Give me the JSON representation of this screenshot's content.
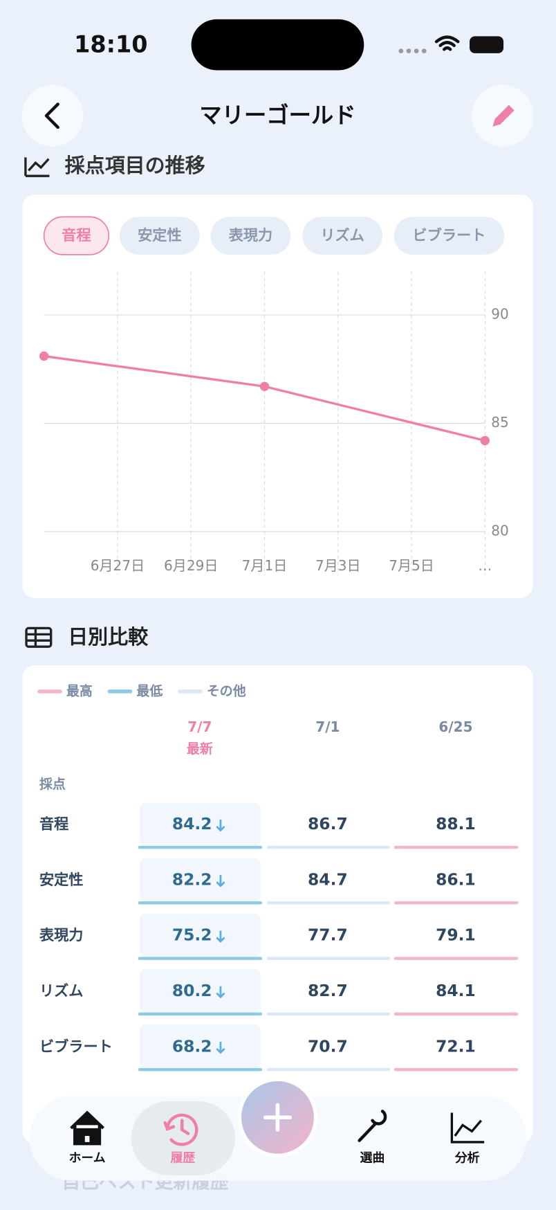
{
  "status_bar": {
    "time": "18:10"
  },
  "header": {
    "title": "マリーゴールド"
  },
  "trend": {
    "title": "採点項目の推移",
    "tabs": [
      "音程",
      "安定性",
      "表現力",
      "リズム",
      "ビブラート"
    ]
  },
  "chart_data": {
    "type": "line",
    "x": [
      176,
      182,
      188
    ],
    "xlim": [
      176,
      188
    ],
    "xticks": [
      {
        "value": 178,
        "label": "6月27日"
      },
      {
        "value": 180,
        "label": "6月29日"
      },
      {
        "value": 182,
        "label": "7月1日"
      },
      {
        "value": 184,
        "label": "7月3日"
      },
      {
        "value": 186,
        "label": "7月5日"
      },
      {
        "value": 188,
        "label": "…"
      }
    ],
    "series": [
      {
        "name": "音程",
        "color": "#f07fa8",
        "values": [
          88.1,
          86.7,
          84.2
        ]
      }
    ],
    "ylim": [
      78,
      92
    ],
    "yticks": [
      80,
      85,
      90
    ],
    "grid": true
  },
  "comparison": {
    "title": "日別比較",
    "legend": [
      "最高",
      "最低",
      "その他"
    ],
    "columns": [
      "7/7",
      "7/1",
      "6/25"
    ],
    "latest_label": "最新",
    "group": "採点",
    "rows": [
      {
        "label": "音程",
        "values": [
          84.2,
          86.7,
          88.1
        ]
      },
      {
        "label": "安定性",
        "values": [
          82.2,
          84.7,
          86.1
        ]
      },
      {
        "label": "表現力",
        "values": [
          75.2,
          77.7,
          79.1
        ]
      },
      {
        "label": "リズム",
        "values": [
          80.2,
          82.7,
          84.1
        ]
      },
      {
        "label": "ビブラート",
        "values": [
          68.2,
          70.7,
          72.1
        ]
      }
    ]
  },
  "next_section": "自己ベスト更新履歴",
  "nav": [
    "ホーム",
    "履歴",
    "選曲",
    "分析"
  ]
}
